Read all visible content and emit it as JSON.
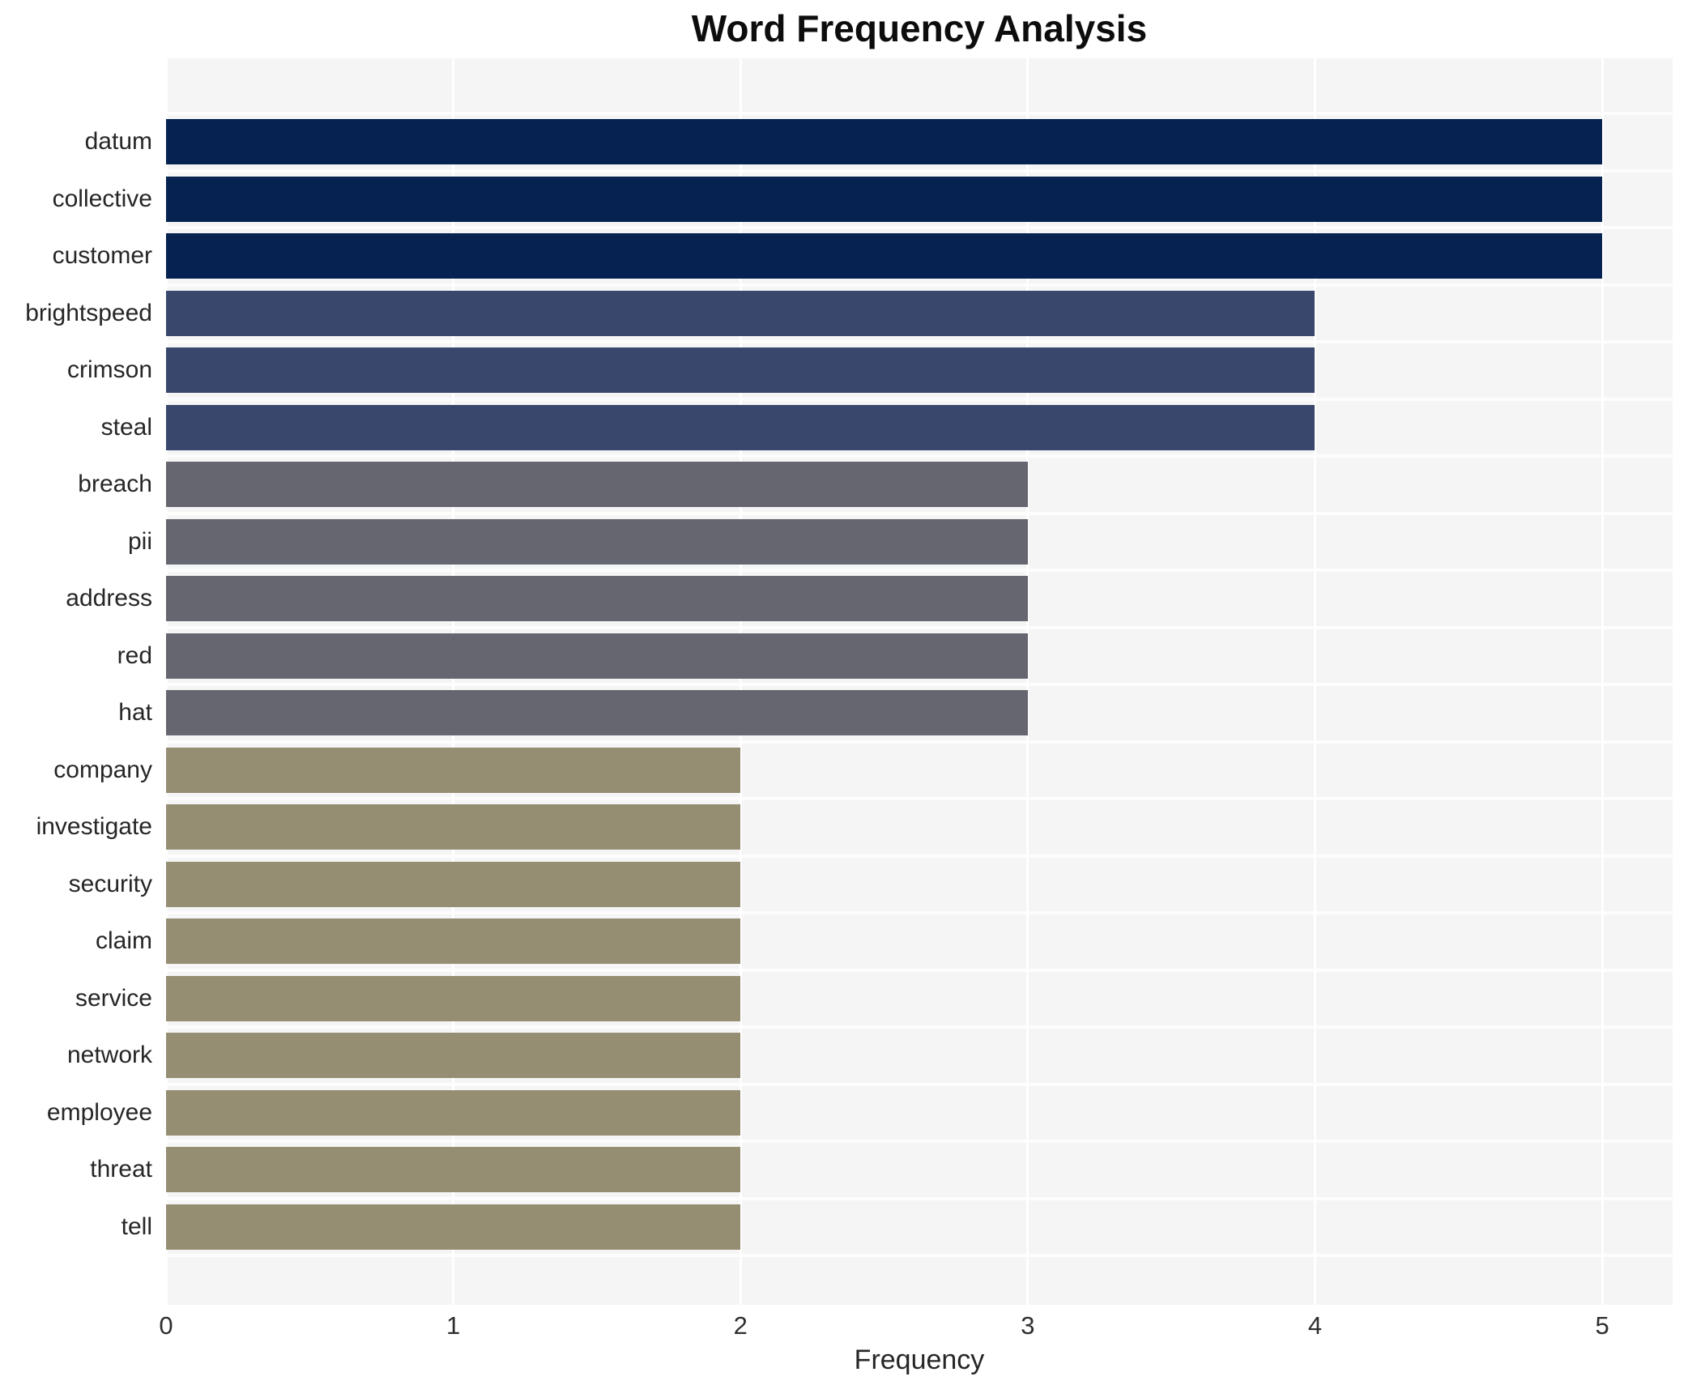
{
  "title": "Word Frequency Analysis",
  "chart_data": {
    "type": "bar",
    "orientation": "horizontal",
    "title": "Word Frequency Analysis",
    "xlabel": "Frequency",
    "ylabel": "",
    "xlim": [
      0,
      5.245
    ],
    "x_ticks": [
      0,
      1,
      2,
      3,
      4,
      5
    ],
    "grid": "white vertical gridlines on light gray panel, white separators between rows",
    "legend": "none",
    "categories": [
      "datum",
      "collective",
      "customer",
      "brightspeed",
      "crimson",
      "steal",
      "breach",
      "pii",
      "address",
      "red",
      "hat",
      "company",
      "investigate",
      "security",
      "claim",
      "service",
      "network",
      "employee",
      "threat",
      "tell"
    ],
    "values": [
      5,
      5,
      5,
      4,
      4,
      4,
      3,
      3,
      3,
      3,
      3,
      2,
      2,
      2,
      2,
      2,
      2,
      2,
      2,
      2
    ],
    "value_colors": {
      "5": "#052250",
      "4": "#38476b",
      "3": "#65666f",
      "2": "#968e73"
    },
    "panel_bg": "#f5f5f6",
    "gridline_color": "#ffffff",
    "text_color": "#262626"
  }
}
